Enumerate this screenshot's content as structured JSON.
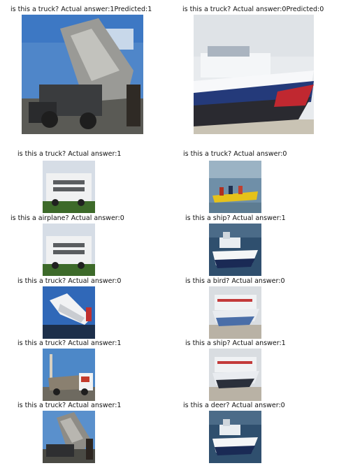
{
  "top": [
    {
      "question": "is this a truck?",
      "actual": "Actual answer:1",
      "predicted": "Predicted:1"
    },
    {
      "question": "is this a truck?",
      "actual": "Actual answer:0",
      "predicted": "Predicted:0"
    }
  ],
  "rows": [
    [
      {
        "question": "is this a truck?",
        "actual": "Actual answer:1"
      },
      {
        "question": "is this a truck?",
        "actual": "Actual answer:0"
      }
    ],
    [
      {
        "question": "is this a airplane?",
        "actual": "Actual answer:0"
      },
      {
        "question": "is this a ship?",
        "actual": "Actual answer:1"
      }
    ],
    [
      {
        "question": "is this a truck?",
        "actual": "Actual answer:0"
      },
      {
        "question": "is this a bird?",
        "actual": "Actual answer:0"
      }
    ],
    [
      {
        "question": "is this a truck?",
        "actual": "Actual answer:1"
      },
      {
        "question": "is this a ship?",
        "actual": "Actual answer:1"
      }
    ],
    [
      {
        "question": "is this a truck?",
        "actual": "Actual answer:1"
      },
      {
        "question": "is this a deer?",
        "actual": "Actual answer:0"
      }
    ]
  ]
}
